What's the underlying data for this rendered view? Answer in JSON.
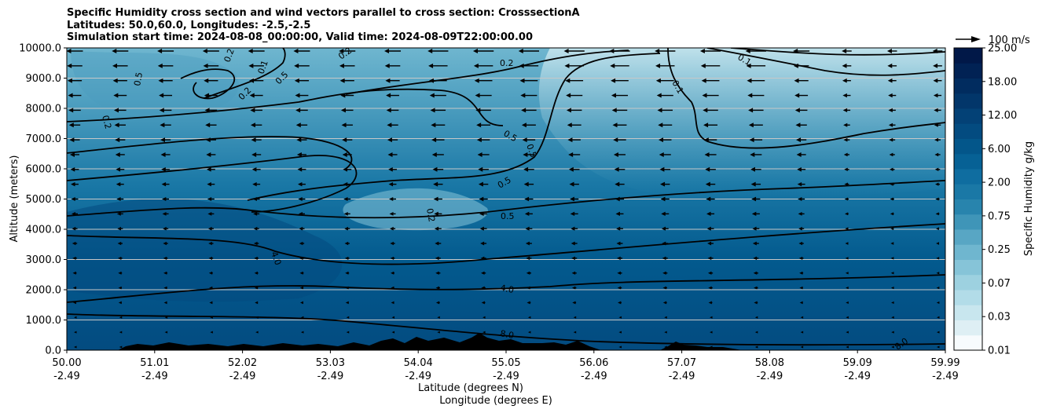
{
  "chart_data": {
    "type": "contour-cross-section",
    "title_lines": [
      "Specific Humidity cross section and wind vectors parallel to cross section: CrosssectionA",
      "Latitudes: 50.0,60.0, Longitudes: -2.5,-2.5",
      "Simulation start time: 2024-08-08_00:00:00, Valid time: 2024-08-09T22:00:00.00"
    ],
    "xlabel": "Latitude (degrees N)",
    "xlabel2": "Longitude (degrees E)",
    "ylabel": "Altitude (meters)",
    "ylim": [
      0,
      10000
    ],
    "yticks": [
      "0.0",
      "1000.0",
      "2000.0",
      "3000.0",
      "4000.0",
      "5000.0",
      "6000.0",
      "7000.0",
      "8000.0",
      "9000.0",
      "10000.0"
    ],
    "xticks": [
      {
        "lat": "50.00",
        "lon": "-2.49"
      },
      {
        "lat": "51.01",
        "lon": "-2.49"
      },
      {
        "lat": "52.02",
        "lon": "-2.49"
      },
      {
        "lat": "53.03",
        "lon": "-2.49"
      },
      {
        "lat": "54.04",
        "lon": "-2.49"
      },
      {
        "lat": "55.05",
        "lon": "-2.49"
      },
      {
        "lat": "56.06",
        "lon": "-2.49"
      },
      {
        "lat": "57.07",
        "lon": "-2.49"
      },
      {
        "lat": "58.08",
        "lon": "-2.49"
      },
      {
        "lat": "59.09",
        "lon": "-2.49"
      },
      {
        "lat": "59.99",
        "lon": "-2.49"
      }
    ],
    "colorbar": {
      "label": "Specific Humidity g/kg",
      "ticks": [
        "0.01",
        "0.03",
        "0.07",
        "0.25",
        "0.75",
        "2.00",
        "6.00",
        "12.00",
        "18.00",
        "25.00"
      ],
      "colors": [
        "#f7fbfd",
        "#deeff4",
        "#c8e6ee",
        "#b2dce8",
        "#9dd1e0",
        "#86c4d8",
        "#6fb6cf",
        "#58a6c4",
        "#3f95b8",
        "#2884ad",
        "#1a78a6",
        "#0f6da0",
        "#066195",
        "#03568a",
        "#034b80",
        "#034176",
        "#02366a",
        "#012c5f",
        "#012254",
        "#011848"
      ],
      "levels_per_tick": 2
    },
    "contour_labels": [
      "0.1",
      "0.2",
      "0.5",
      "4.0",
      "8.0"
    ],
    "wind_reference": {
      "label": "100 m/s",
      "value": 100
    },
    "terrain": "Surface elevation profile along cross section (black)"
  }
}
